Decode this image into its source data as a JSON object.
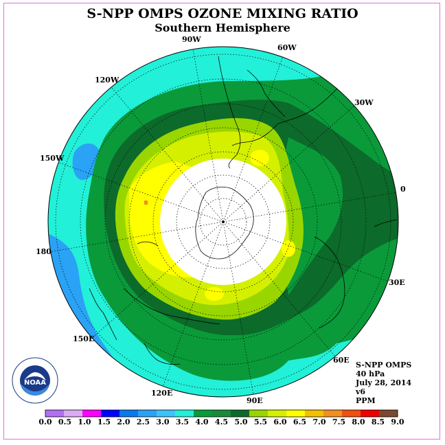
{
  "title": "S-NPP OMPS OZONE MIXING RATIO",
  "subtitle": "Southern Hemisphere",
  "longitude_labels": {
    "w90": "90W",
    "w60": "60W",
    "w120": "120W",
    "w30": "30W",
    "w150": "150W",
    "zero": "0",
    "l180": "180",
    "e30": "30E",
    "e150": "150E",
    "e60": "60E",
    "e120": "120E",
    "e90": "90E"
  },
  "info": {
    "instrument": "S-NPP OMPS",
    "level": "40 hPa",
    "date": "July 28, 2014",
    "version": "v6",
    "units": "PPM"
  },
  "colorbar": {
    "ticks": [
      "0.0",
      "0.5",
      "1.0",
      "1.5",
      "2.0",
      "2.5",
      "3.0",
      "3.5",
      "4.0",
      "4.5",
      "5.0",
      "5.5",
      "6.0",
      "6.5",
      "7.0",
      "7.5",
      "8.0",
      "8.5",
      "9.0"
    ],
    "colors": [
      "#b070f0",
      "#dcaaf5",
      "#ff00ff",
      "#0000ff",
      "#0a7aee",
      "#2aa2f5",
      "#3cc4f8",
      "#22f0d8",
      "#0a9a3a",
      "#1a8a3a",
      "#0c6a2a",
      "#99d600",
      "#d4f000",
      "#ffff00",
      "#f5c000",
      "#f09020",
      "#f05010",
      "#f00000",
      "#7a4a30"
    ]
  },
  "logo_text": "NOAA",
  "colors": {
    "frame": "#e070e0",
    "cyan": "#22f0d8",
    "blue": "#2aa2f5",
    "green_mid": "#0a9a3a",
    "green_dark": "#0c6a2a",
    "lime": "#99d600",
    "yellow_green": "#d4f000",
    "yellow": "#ffff00"
  }
}
